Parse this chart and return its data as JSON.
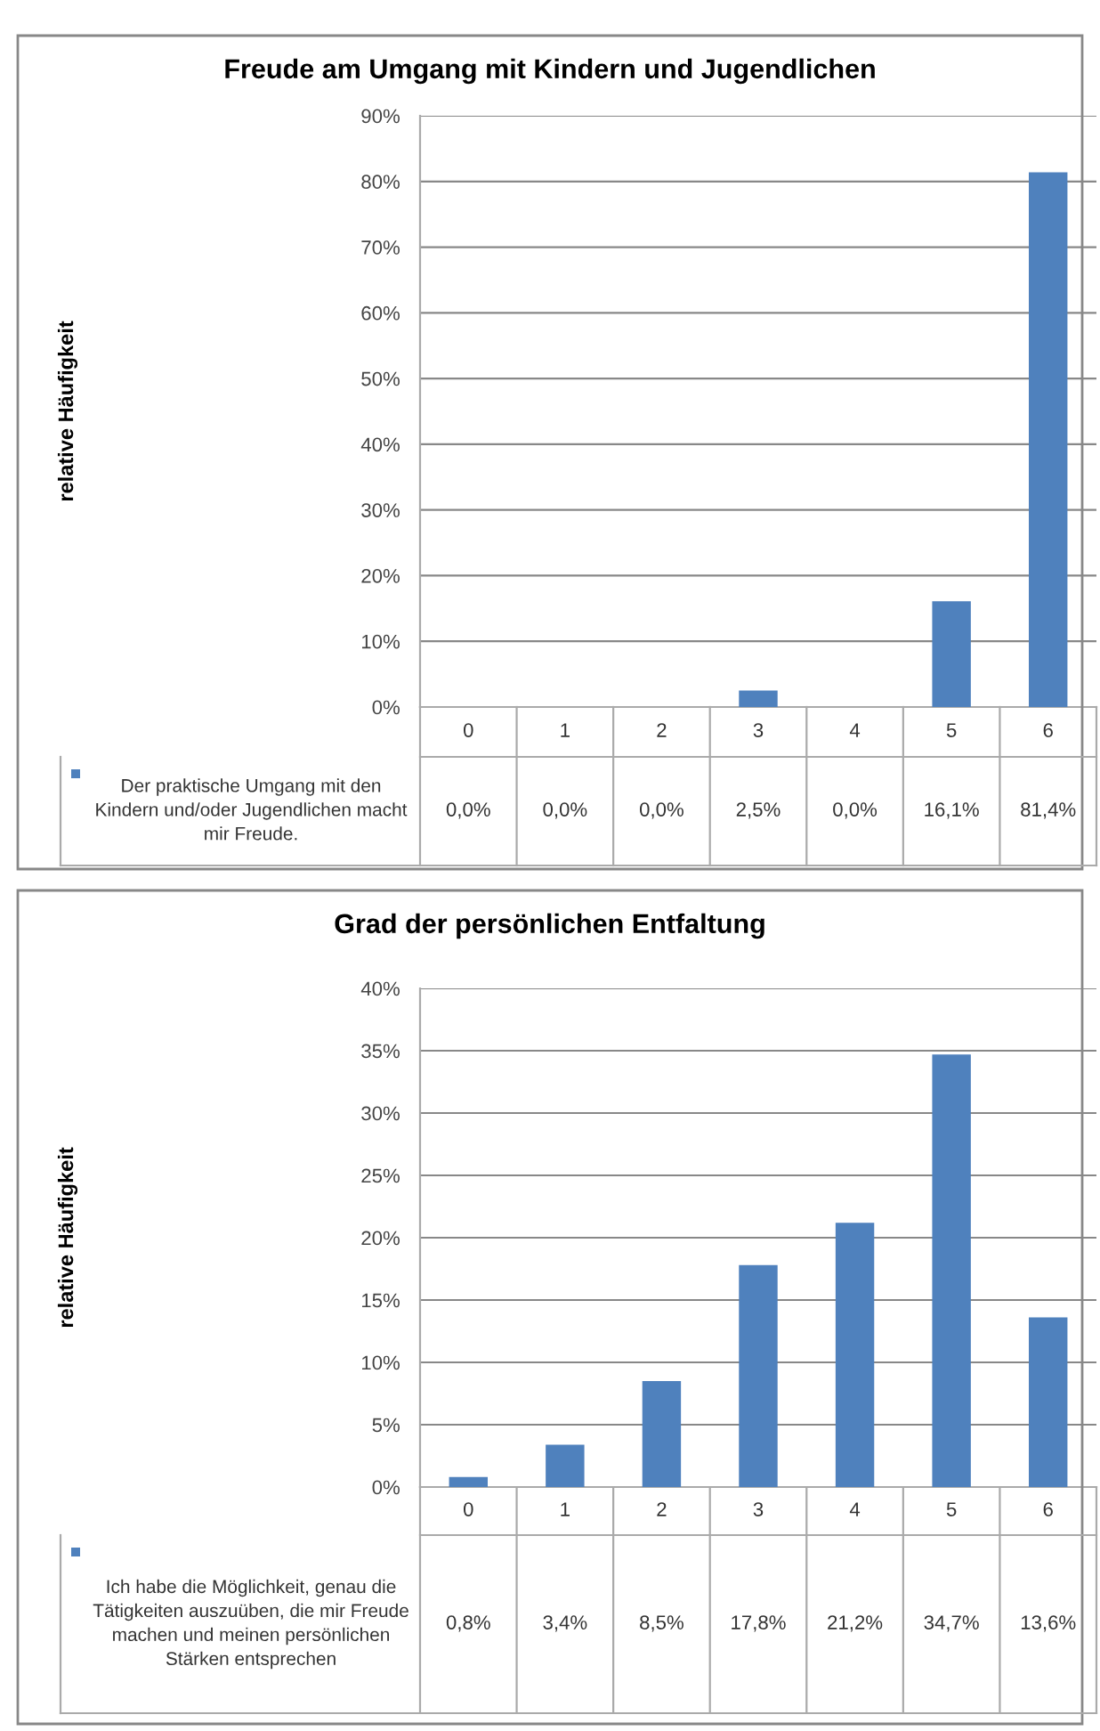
{
  "chart_data": [
    {
      "type": "bar",
      "title": "Freude am Umgang mit Kindern und Jugendlichen",
      "ylabel": "relative Häufigkeit",
      "categories": [
        "0",
        "1",
        "2",
        "3",
        "4",
        "5",
        "6"
      ],
      "series": [
        {
          "name": "Der praktische Umgang mit den Kindern und/oder Jugendlichen macht mir Freude.",
          "color": "#4f81bd",
          "values": [
            0.0,
            0.0,
            0.0,
            2.5,
            0.0,
            16.1,
            81.4
          ],
          "value_labels": [
            "0,0%",
            "0,0%",
            "0,0%",
            "2,5%",
            "0,0%",
            "16,1%",
            "81,4%"
          ]
        }
      ],
      "ylim": [
        0,
        90
      ],
      "yticks": [
        {
          "value": 0,
          "label": "0%"
        },
        {
          "value": 10,
          "label": "10%"
        },
        {
          "value": 20,
          "label": "20%"
        },
        {
          "value": 30,
          "label": "30%"
        },
        {
          "value": 40,
          "label": "40%"
        },
        {
          "value": 50,
          "label": "50%"
        },
        {
          "value": 60,
          "label": "60%"
        },
        {
          "value": 70,
          "label": "70%"
        },
        {
          "value": 80,
          "label": "80%"
        },
        {
          "value": 90,
          "label": "90%"
        }
      ],
      "grid": "y",
      "legend": "bottom left"
    },
    {
      "type": "bar",
      "title": "Grad der persönlichen Entfaltung",
      "ylabel": "relative Häufigkeit",
      "categories": [
        "0",
        "1",
        "2",
        "3",
        "4",
        "5",
        "6"
      ],
      "series": [
        {
          "name": "Ich habe die Möglichkeit, genau die Tätigkeiten auszuüben, die mir Freude machen und meinen persönlichen Stärken entsprechen",
          "color": "#4f81bd",
          "values": [
            0.8,
            3.4,
            8.5,
            17.8,
            21.2,
            34.7,
            13.6
          ],
          "value_labels": [
            "0,8%",
            "3,4%",
            "8,5%",
            "17,8%",
            "21,2%",
            "34,7%",
            "13,6%"
          ]
        }
      ],
      "ylim": [
        0,
        40
      ],
      "yticks": [
        {
          "value": 0,
          "label": "0%"
        },
        {
          "value": 5,
          "label": "5%"
        },
        {
          "value": 10,
          "label": "10%"
        },
        {
          "value": 15,
          "label": "15%"
        },
        {
          "value": 20,
          "label": "20%"
        },
        {
          "value": 25,
          "label": "25%"
        },
        {
          "value": 30,
          "label": "30%"
        },
        {
          "value": 35,
          "label": "35%"
        },
        {
          "value": 40,
          "label": "40%"
        }
      ],
      "grid": "y",
      "legend": "bottom left"
    }
  ]
}
